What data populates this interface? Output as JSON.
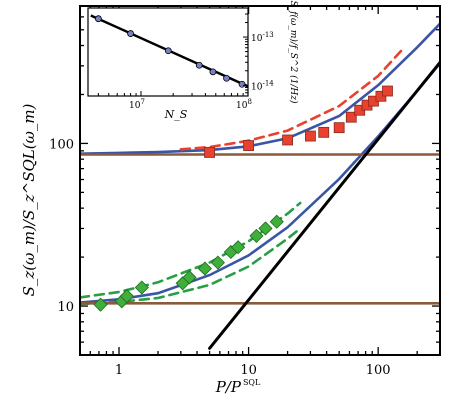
{
  "chart_data": {
    "type": "scatter",
    "main": {
      "xlabel": "P/P",
      "xlabel_super": "SQL",
      "ylabel": "S_z(ω_m)/S_z^SQL(ω_m)",
      "xscale": "log",
      "yscale": "log",
      "xlim": [
        0.5,
        300
      ],
      "ylim": [
        5,
        700
      ],
      "xticks": [
        1,
        10,
        100
      ],
      "xtick_labels": [
        "1",
        "10",
        "100"
      ],
      "yticks": [
        10,
        100
      ],
      "ytick_labels": [
        "10",
        "100"
      ],
      "series": [
        {
          "kind": "points",
          "marker": "square",
          "color": "#e8412f",
          "x": [
            5.0,
            10.0,
            20.0,
            30.0,
            38.0,
            50.0,
            62.0,
            72.0,
            82.0,
            92.0,
            105.0,
            118.0
          ],
          "y": [
            88,
            97,
            105,
            111,
            117,
            125,
            145,
            160,
            172,
            182,
            195,
            210
          ]
        },
        {
          "kind": "points",
          "marker": "diamond",
          "color": "#3fae3b",
          "x": [
            0.72,
            1.05,
            1.15,
            1.5,
            3.1,
            3.5,
            4.6,
            5.8,
            7.3,
            8.3,
            11.5,
            13.5,
            16.5
          ],
          "y": [
            10.2,
            10.7,
            11.5,
            13.0,
            13.8,
            15.0,
            17.0,
            18.5,
            21.5,
            23.0,
            27.0,
            30.0,
            33.0
          ]
        },
        {
          "kind": "line",
          "style": "solid",
          "color": "#3a55a4",
          "x": [
            0.5,
            1,
            2,
            5,
            10,
            20,
            50,
            100,
            200,
            300
          ],
          "y": [
            86.5,
            87.5,
            88.5,
            91.0,
            96.0,
            107.5,
            147.5,
            228,
            390,
            545
          ]
        },
        {
          "kind": "line",
          "style": "dashed",
          "color": "#e8412f",
          "x": [
            3,
            5,
            10,
            20,
            50,
            100,
            150
          ],
          "y": [
            92,
            95,
            104,
            120,
            170,
            260,
            370
          ]
        },
        {
          "kind": "line",
          "style": "solid",
          "color": "#3a55a4",
          "x": [
            0.5,
            1,
            2,
            5,
            10,
            20,
            50,
            100,
            200,
            300
          ],
          "y": [
            10.5,
            11.0,
            12.0,
            15.5,
            20.5,
            30.5,
            60.5,
            110.5,
            210.5,
            310.5
          ]
        },
        {
          "kind": "line",
          "style": "dashed",
          "color": "#27a045",
          "x": [
            0.5,
            1,
            2,
            5,
            10,
            20,
            25
          ],
          "y": [
            11.3,
            12.2,
            14.0,
            18.5,
            25.0,
            37.0,
            43.0
          ]
        },
        {
          "kind": "line",
          "style": "dashed",
          "color": "#27a045",
          "x": [
            0.5,
            1,
            2,
            5,
            10,
            20,
            25
          ],
          "y": [
            10.3,
            10.6,
            11.2,
            13.5,
            17.5,
            26.0,
            30.0
          ]
        },
        {
          "kind": "line",
          "style": "solid",
          "color": "#8a5a3a",
          "x": [
            0.5,
            300
          ],
          "y": [
            85.5,
            85.5
          ]
        },
        {
          "kind": "line",
          "style": "solid",
          "color": "#8a5a3a",
          "x": [
            0.5,
            300
          ],
          "y": [
            10.4,
            10.4
          ]
        },
        {
          "kind": "line",
          "style": "solid",
          "color": "#000000",
          "x": [
            5,
            300
          ],
          "y": [
            5.5,
            315
          ]
        }
      ]
    },
    "inset": {
      "xlabel": "N_S",
      "ylabel": "S_f(ω_m)/f_S^2 (1/Hz)",
      "xscale": "log",
      "yscale": "log",
      "xlim": [
        3200000.0,
        100000000.0
      ],
      "ylim": [
        6e-15,
        4e-13
      ],
      "xticks": [
        10000000.0,
        100000000.0
      ],
      "xtick_labels": [
        "10^7",
        "10^8"
      ],
      "yticks": [
        1e-13,
        1e-14
      ],
      "ytick_labels": [
        "10^-13",
        "10^-14"
      ],
      "points": {
        "x": [
          4000000.0,
          8000000.0,
          18000000.0,
          35000000.0,
          47000000.0,
          63000000.0,
          88000000.0
        ],
        "y": [
          2.4e-13,
          1.18e-13,
          5.2e-14,
          2.6e-14,
          1.9e-14,
          1.4e-14,
          1.05e-14
        ]
      },
      "fit": {
        "x": [
          3400000.0,
          100000000.0
        ],
        "y": [
          2.8e-13,
          9.5e-15
        ]
      }
    }
  }
}
